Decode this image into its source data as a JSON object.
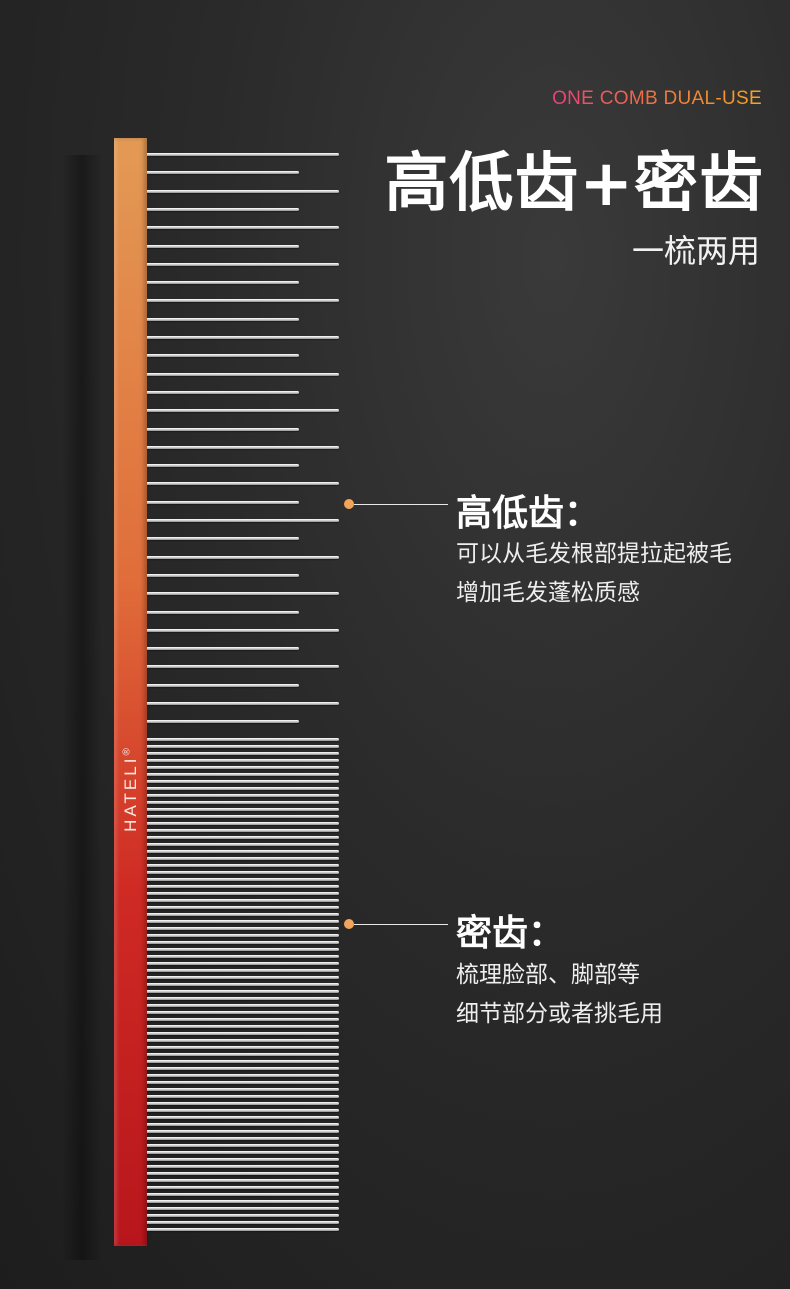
{
  "header": {
    "tagline": "ONE COMB DUAL-USE",
    "title": "高低齿+密齿",
    "subtitle": "一梳两用"
  },
  "comb": {
    "brand": "HATELI",
    "registered_mark": "®"
  },
  "callouts": [
    {
      "title": "高低齿：",
      "lines": [
        "可以从毛发根部提拉起被毛",
        "增加毛发蓬松质感"
      ]
    },
    {
      "title": "密齿：",
      "lines": [
        "梳理脸部、脚部等",
        "细节部分或者挑毛用"
      ]
    }
  ],
  "colors": {
    "tagline_gradient": [
      "#e8407a",
      "#f5a623"
    ],
    "spine_top": "#e39a55",
    "spine_bottom": "#b8161c",
    "callout_dot": "#f2a45b"
  }
}
